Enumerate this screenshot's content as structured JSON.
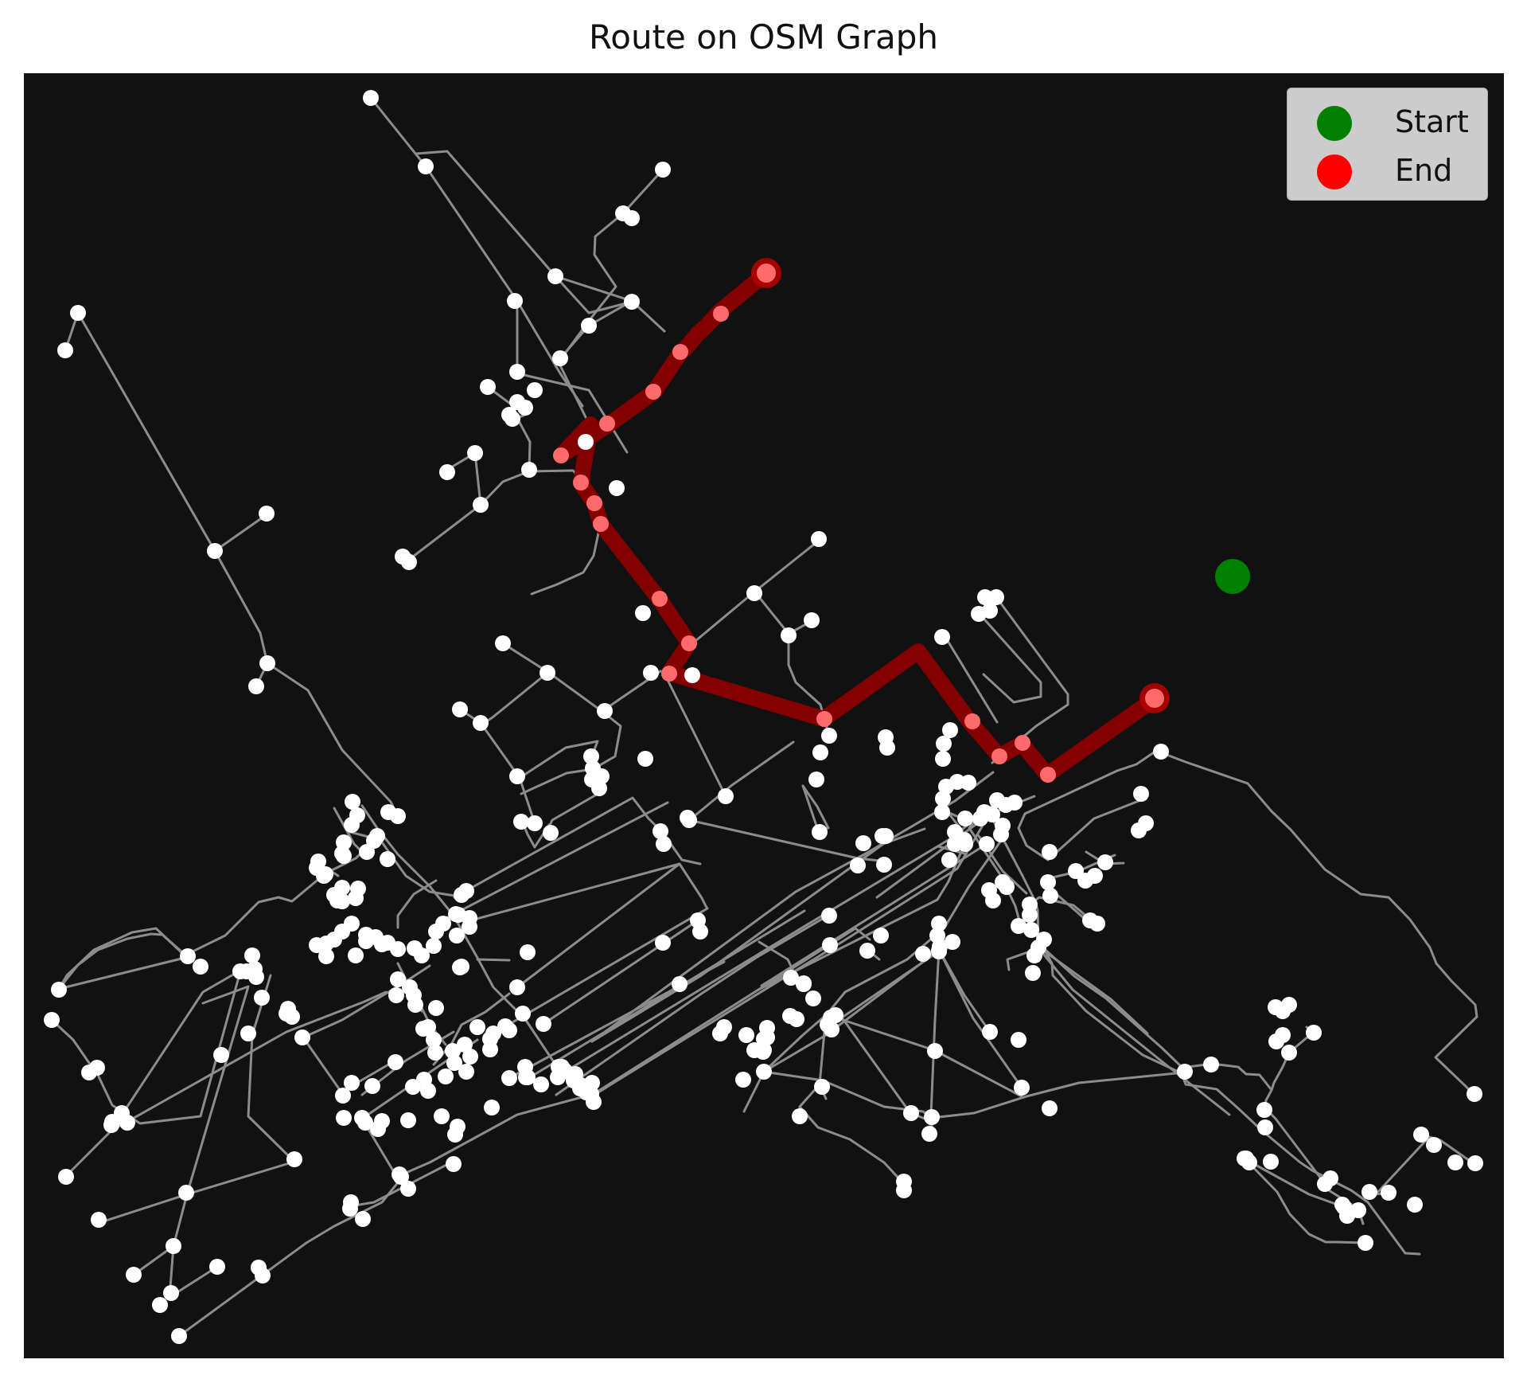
{
  "title": "Route on OSM Graph",
  "legend": {
    "start_label": "Start",
    "end_label": "End",
    "start_color": "#008000",
    "end_color": "#ff0000"
  },
  "colors": {
    "background": "#111111",
    "edge": "#9a9a9a",
    "node": "#ffffff",
    "route": "#8b0000",
    "route_node": "#ff6b6b"
  },
  "legend_position": "upper right"
}
